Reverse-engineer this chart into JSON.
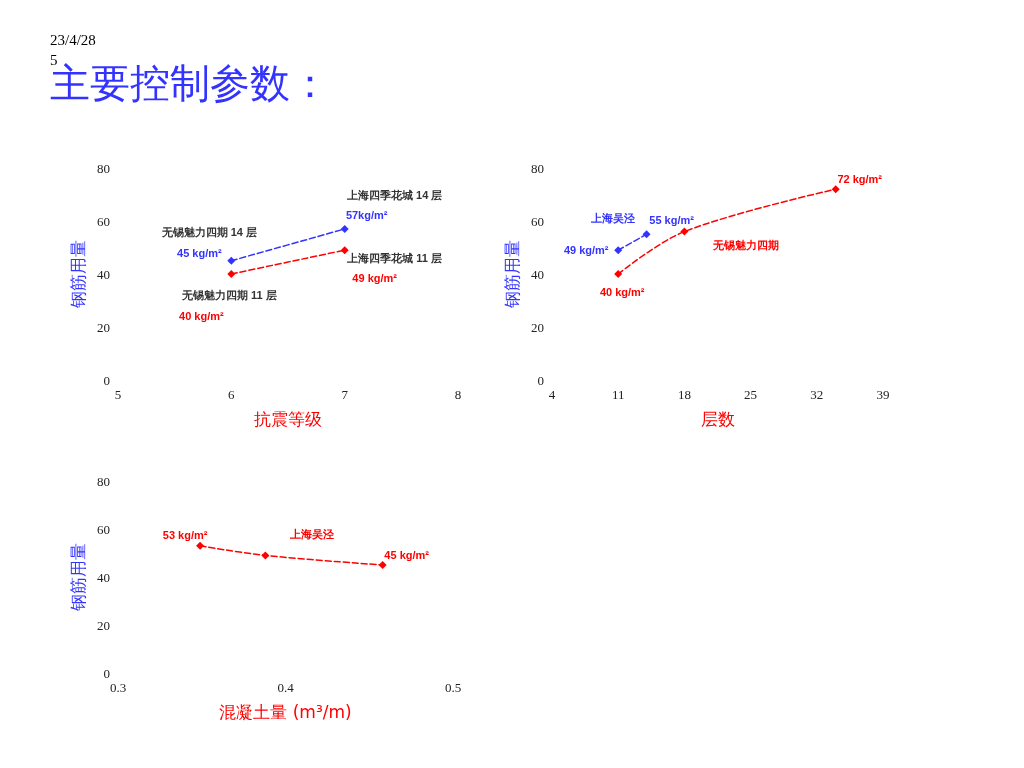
{
  "chart_data": [
    {
      "type": "line",
      "title": "主要控制参数：",
      "xlabel": "抗震等级",
      "ylabel": "钢筋用量",
      "xlim": [
        5,
        8
      ],
      "xticks": [
        5,
        6,
        7,
        8
      ],
      "ylim": [
        0,
        80
      ],
      "yticks": [
        0,
        20,
        40,
        60,
        80
      ],
      "grid": false,
      "marker": "diamond",
      "line_style": "dashed",
      "series": [
        {
          "color": "#3333ff",
          "x": [
            6,
            7
          ],
          "values": [
            45,
            57
          ],
          "value_labels": [
            "45 kg/m²",
            "57kg/m²"
          ]
        },
        {
          "color": "#ff0000",
          "x": [
            6,
            7
          ],
          "values": [
            40,
            49
          ],
          "value_labels": [
            "40 kg/m²",
            "49 kg/m²"
          ]
        }
      ],
      "annotations": [
        "23/4/28",
        "5",
        {
          "text": "无锡魅力四期 14 层",
          "x": 6,
          "y": 45
        },
        {
          "text": "上海四季花城 14 层",
          "x": 7,
          "y": 57
        },
        {
          "text": "上海四季花城 11 层",
          "x": 7,
          "y": 49
        },
        {
          "text": "无锡魅力四期 11 层",
          "x": 6,
          "y": 40
        }
      ]
    },
    {
      "type": "line",
      "xlabel": "层数",
      "ylabel": "钢筋用量",
      "xlim": [
        4,
        39
      ],
      "xticks": [
        4,
        11,
        18,
        25,
        32,
        39
      ],
      "ylim": [
        0,
        80
      ],
      "yticks": [
        0,
        20,
        40,
        60,
        80
      ],
      "grid": false,
      "marker": "diamond",
      "line_style": "dashed",
      "series": [
        {
          "color": "#3333ff",
          "x": [
            11,
            14
          ],
          "values": [
            49,
            55
          ],
          "value_labels": [
            "49 kg/m²",
            "55 kg/m²"
          ]
        },
        {
          "color": "#ff0000",
          "x": [
            11,
            18,
            34
          ],
          "values": [
            40,
            56,
            72
          ],
          "value_labels": [
            "40 kg/m²",
            null,
            "72 kg/m²"
          ]
        }
      ],
      "annotations": [
        {
          "text": "上海吴泾",
          "x": 11,
          "y": 49
        },
        {
          "text": "无锡魅力四期",
          "x": 21.5,
          "y": 60
        }
      ]
    },
    {
      "type": "line",
      "xlabel": "混凝土量 (m³/m)",
      "ylabel": "钢筋用量",
      "xlim": [
        0.3,
        0.5
      ],
      "xticks": [
        0.3,
        0.4,
        0.5
      ],
      "ylim": [
        0,
        80
      ],
      "yticks": [
        0,
        20,
        40,
        60,
        80
      ],
      "grid": false,
      "marker": "diamond",
      "line_style": "dashed",
      "series": [
        {
          "color": "#ff0000",
          "x": [
            0.349,
            0.388,
            0.458
          ],
          "values": [
            53,
            49,
            45
          ],
          "value_labels": [
            "53 kg/m²",
            null,
            "45 kg/m²"
          ]
        }
      ],
      "annotations": [
        {
          "text": "上海吴泾",
          "x": 0.388,
          "y": 49
        }
      ]
    }
  ]
}
